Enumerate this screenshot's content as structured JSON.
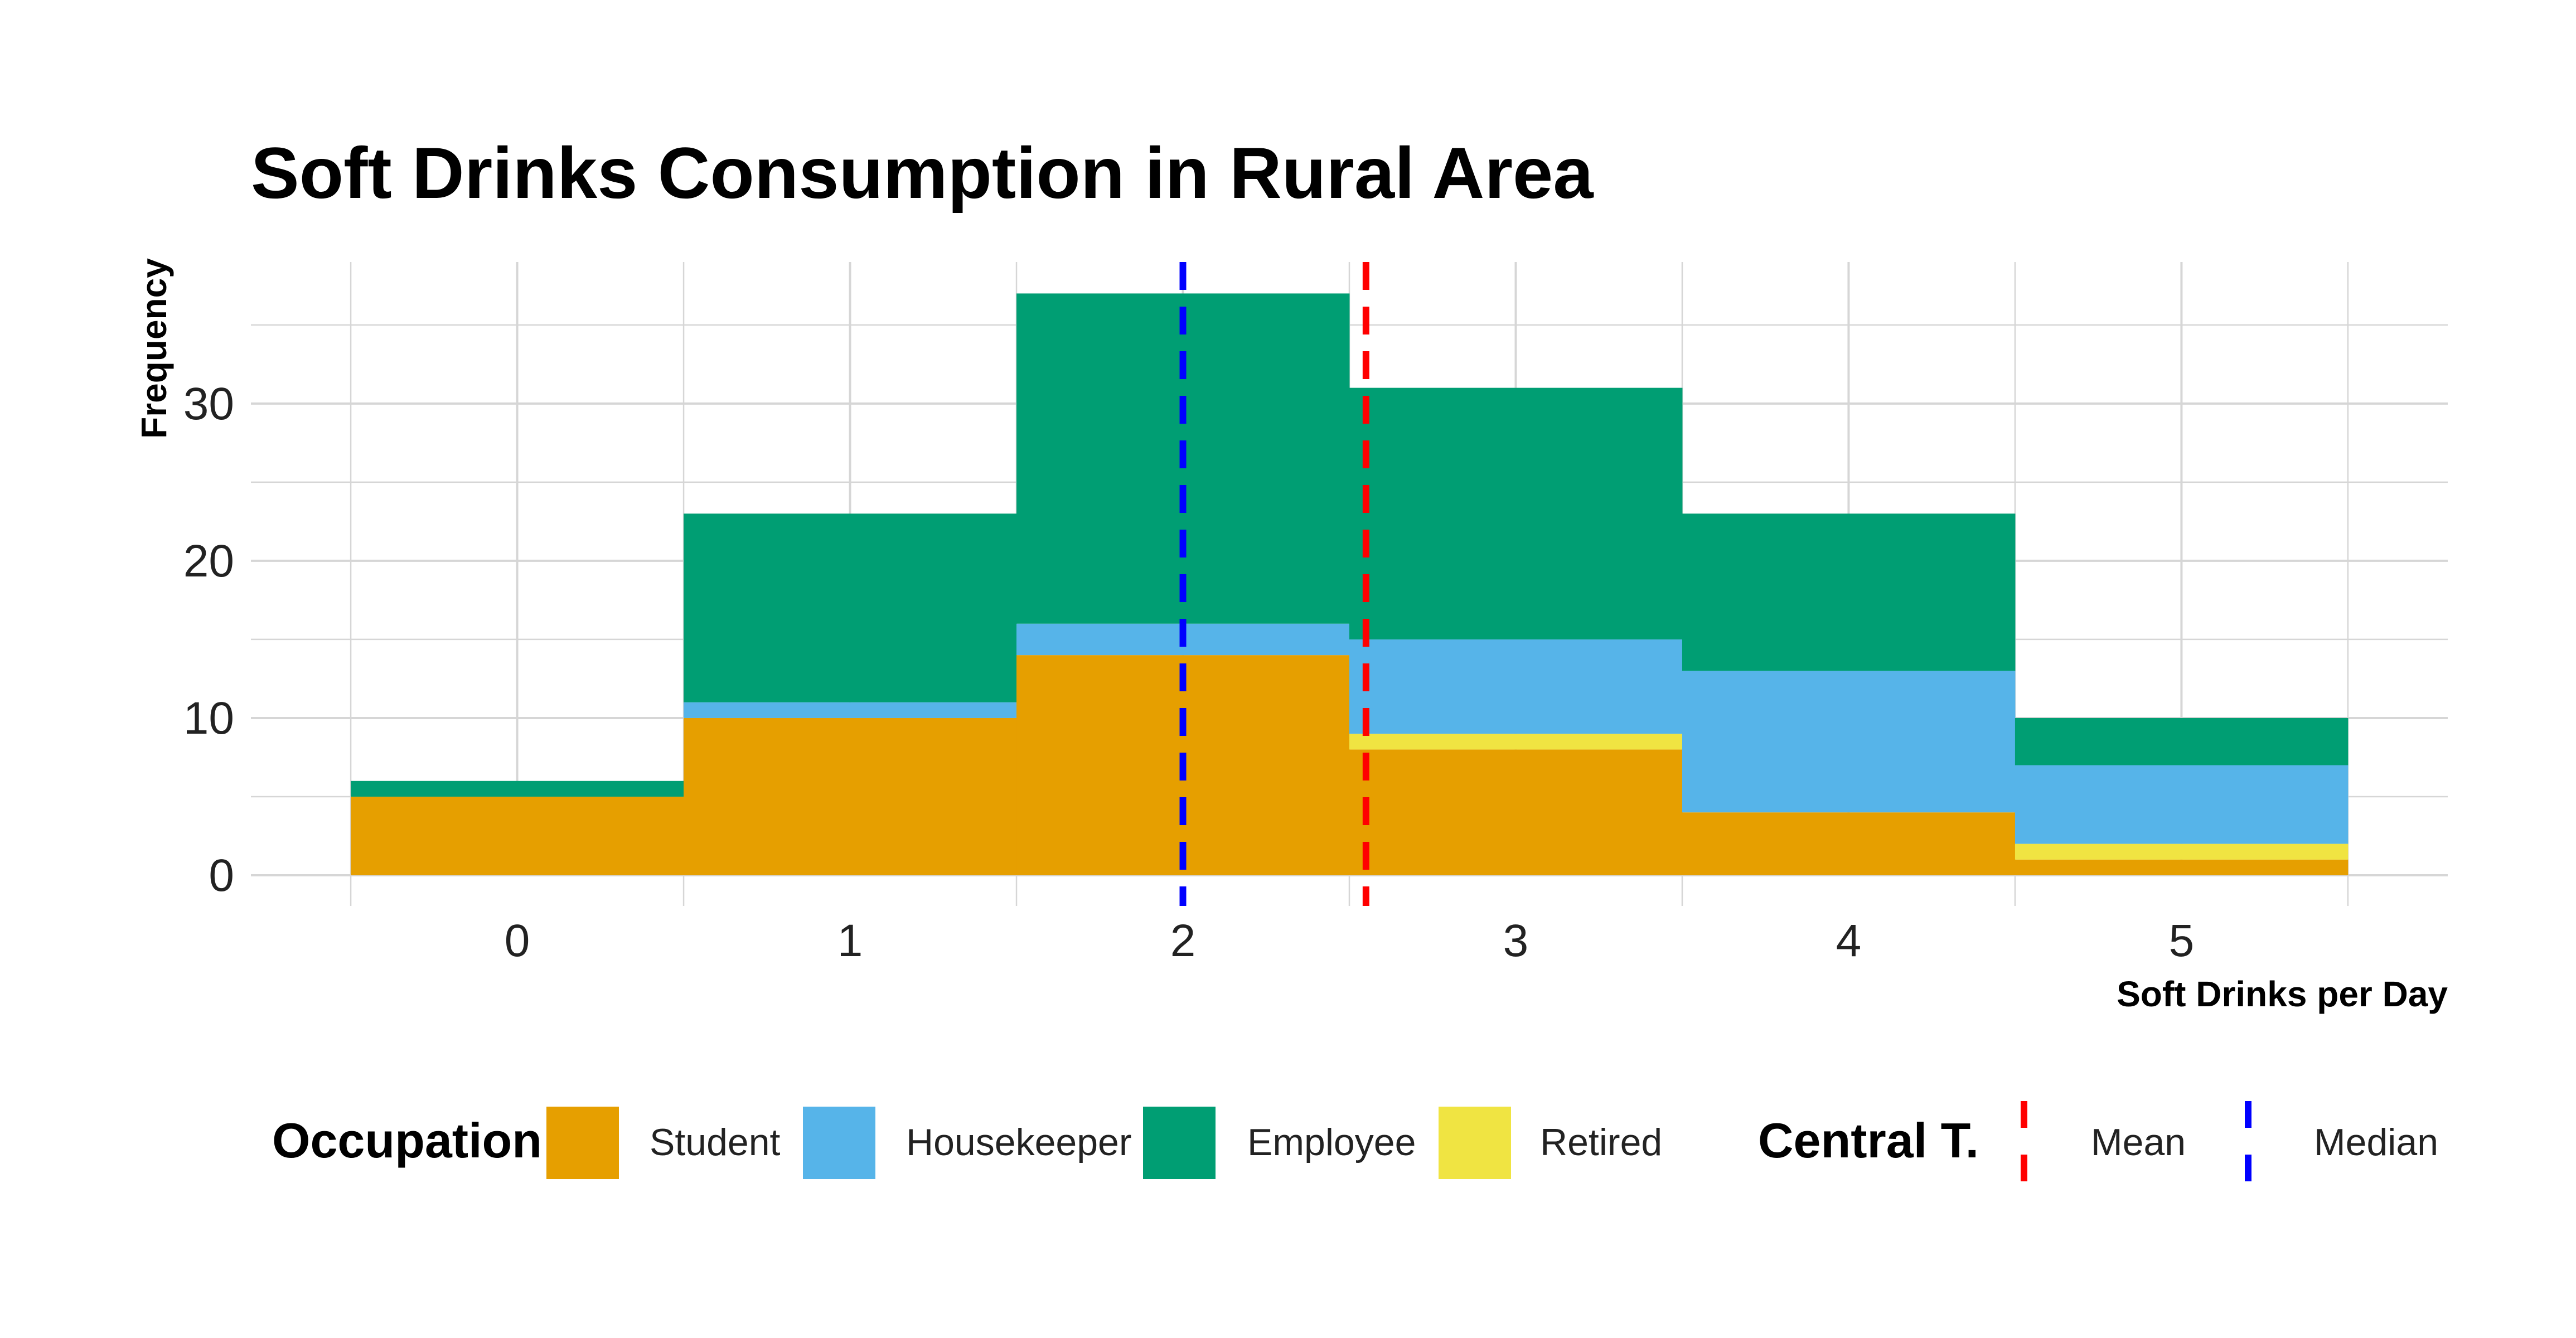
{
  "chart_data": {
    "type": "bar",
    "stacked": true,
    "title": "Soft Drinks Consumption in Rural Area",
    "xlabel": "Soft Drinks per Day",
    "ylabel": "Frequency",
    "categories": [
      "0",
      "1",
      "2",
      "3",
      "4",
      "5"
    ],
    "x": [
      0,
      1,
      2,
      3,
      4,
      5
    ],
    "xlim": [
      -0.8,
      5.8
    ],
    "ylim": [
      0,
      39
    ],
    "y_ticks": [
      0,
      10,
      20,
      30
    ],
    "grid": true,
    "legend_position": "bottom",
    "series": [
      {
        "name": "Student",
        "color": "#E69F00",
        "values": [
          5,
          10,
          14,
          8,
          4,
          1
        ]
      },
      {
        "name": "Retired",
        "color": "#F0E442",
        "values": [
          0,
          0,
          0,
          1,
          0,
          1
        ]
      },
      {
        "name": "Housekeeper",
        "color": "#56B4E9",
        "values": [
          0,
          1,
          2,
          6,
          9,
          5
        ]
      },
      {
        "name": "Employee",
        "color": "#009E73",
        "values": [
          1,
          12,
          21,
          16,
          10,
          3
        ]
      }
    ],
    "legend": {
      "title": "Occupation",
      "items": [
        {
          "label": "Student",
          "color": "#E69F00"
        },
        {
          "label": "Housekeeper",
          "color": "#56B4E9"
        },
        {
          "label": "Employee",
          "color": "#009E73"
        },
        {
          "label": "Retired",
          "color": "#F0E442"
        }
      ]
    },
    "reference_lines": {
      "title": "Central T.",
      "lines": [
        {
          "name": "Mean",
          "value": 2.55,
          "color": "#FF0000",
          "style": "dashed"
        },
        {
          "name": "Median",
          "value": 2.0,
          "color": "#0000FF",
          "style": "dashed"
        }
      ]
    }
  }
}
